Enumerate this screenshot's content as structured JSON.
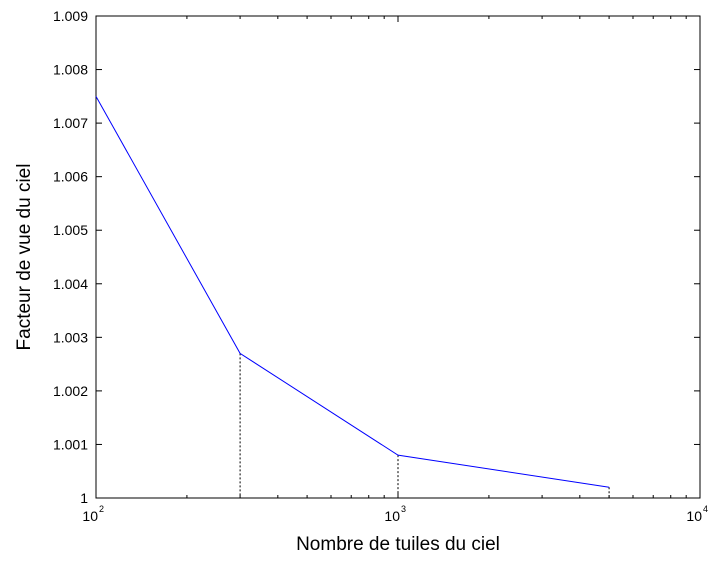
{
  "chart_data": {
    "type": "line",
    "title": "",
    "xlabel": "Nombre de tuiles du ciel",
    "ylabel": "Facteur de vue du ciel",
    "xscale": "log",
    "xlim": [
      100,
      10000
    ],
    "ylim": [
      1,
      1.009
    ],
    "grid": false,
    "x_ticks": [
      {
        "value": 100,
        "base": "10",
        "exp": "2"
      },
      {
        "value": 1000,
        "base": "10",
        "exp": "3"
      },
      {
        "value": 10000,
        "base": "10",
        "exp": "4"
      }
    ],
    "y_ticks": [
      {
        "value": 1,
        "label": "1"
      },
      {
        "value": 1.001,
        "label": "1.001"
      },
      {
        "value": 1.002,
        "label": "1.002"
      },
      {
        "value": 1.003,
        "label": "1.003"
      },
      {
        "value": 1.004,
        "label": "1.004"
      },
      {
        "value": 1.005,
        "label": "1.005"
      },
      {
        "value": 1.006,
        "label": "1.006"
      },
      {
        "value": 1.007,
        "label": "1.007"
      },
      {
        "value": 1.008,
        "label": "1.008"
      },
      {
        "value": 1.009,
        "label": "1.009"
      }
    ],
    "series": [
      {
        "color": "#0000ff",
        "x": [
          100,
          300,
          1000,
          5000
        ],
        "y": [
          1.0075,
          1.0027,
          1.0008,
          1.0002
        ]
      }
    ],
    "dropline_x": [
      300,
      1000,
      5000
    ],
    "dropline_color": "#000000"
  }
}
